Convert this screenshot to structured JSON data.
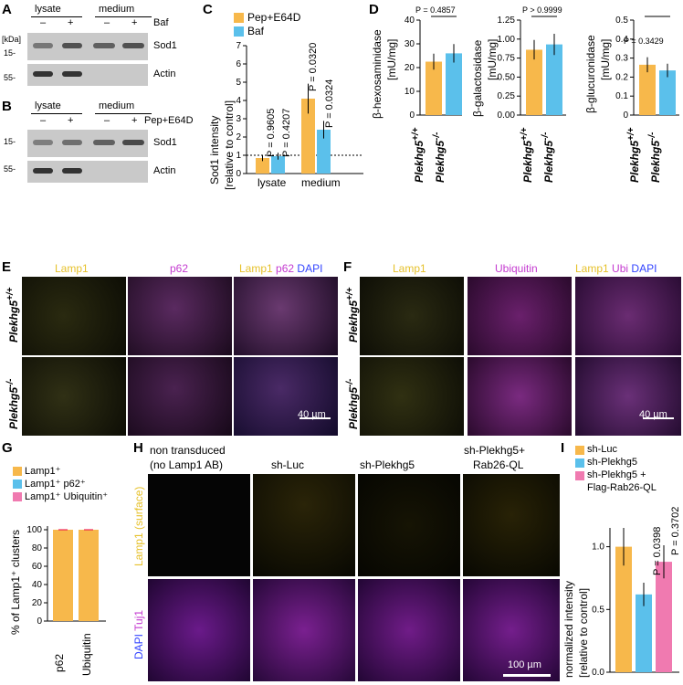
{
  "panels": {
    "A": "A",
    "B": "B",
    "C": "C",
    "D": "D",
    "E": "E",
    "F": "F",
    "G": "G",
    "H": "H",
    "I": "I"
  },
  "blotA": {
    "lysate": "lysate",
    "medium": "medium",
    "treatment": "Baf",
    "minus": "–",
    "plus": "+",
    "kda": "[kDa]",
    "m15": "15-",
    "m55": "55-",
    "sod1": "Sod1",
    "actin": "Actin"
  },
  "blotB": {
    "lysate": "lysate",
    "medium": "medium",
    "treatment": "Pep+E64D",
    "minus": "–",
    "plus": "+",
    "m15": "15-",
    "m55": "55-",
    "sod1": "Sod1",
    "actin": "Actin"
  },
  "panelC": {
    "ylabel1": "Sod1 intensity",
    "ylabel2": "[relative to control]",
    "legend": [
      "Pep+E64D",
      "Baf"
    ],
    "categories": [
      "lysate",
      "medium"
    ],
    "pvals": [
      "P = 0.9605",
      "P = 0.4207",
      "P = 0.0320",
      "P = 0.0324"
    ],
    "ticks": [
      "0",
      "1",
      "2",
      "3",
      "4",
      "5",
      "6",
      "7"
    ]
  },
  "panelD": {
    "h_ylabel1": "β-hexosaminidase",
    "h_ylabel2": "[mU/mg]",
    "h_p": "P = 0.4857",
    "h_ticks": [
      "0",
      "10",
      "20",
      "30",
      "40"
    ],
    "g_ylabel1": "β-galactosidase",
    "g_ylabel2": "[mU/mg]",
    "g_p": "P > 0.9999",
    "g_ticks": [
      "0.00",
      "0.25",
      "0.50",
      "0.75",
      "1.00",
      "1.25"
    ],
    "u_ylabel1": "β-glucuronidase",
    "u_ylabel2": "[mU/mg]",
    "u_p": "P = 0.3429",
    "u_ticks": [
      "0",
      "0.1",
      "0.2",
      "0.3",
      "0.4",
      "0.5"
    ],
    "wt": "Plekhg5",
    "wt_sup": "+/+",
    "ko": "Plekhg5",
    "ko_sup": "-/-"
  },
  "panelE": {
    "c1": "Lamp1",
    "c2": "p62",
    "c3a": "Lamp1",
    "c3b": "p62",
    "c3c": "DAPI",
    "row1": "Plekhg5",
    "row1sup": "+/+",
    "row2": "Plekhg5",
    "row2sup": "-/-",
    "scale": "40 µm"
  },
  "panelF": {
    "c1": "Lamp1",
    "c2": "Ubiquitin",
    "c3a": "Lamp1",
    "c3b": "Ubi",
    "c3c": "DAPI",
    "row1": "Plekhg5",
    "row1sup": "+/+",
    "row2": "Plekhg5",
    "row2sup": "-/-",
    "scale": "40 µm"
  },
  "panelG": {
    "legend": [
      "Lamp1⁺",
      "Lamp1⁺ p62⁺",
      "Lamp1⁺ Ubiquitin⁺"
    ],
    "ylabel": "% of Lamp1⁺ clusters",
    "ticks": [
      "0",
      "20",
      "40",
      "60",
      "80",
      "100"
    ],
    "categories": [
      "p62",
      "Ubiquitin"
    ]
  },
  "panelH": {
    "cols": [
      "non transduced",
      "(no Lamp1 AB)",
      "sh-Luc",
      "sh-Plekhg5",
      "sh-Plekhg5+",
      "Rab26-QL"
    ],
    "row1a": "Lamp1",
    "row1b": "(surface)",
    "row2a": "DAPI",
    "row2b": "Tuj1",
    "scale": "100 µm"
  },
  "panelI": {
    "legend": [
      "sh-Luc",
      "sh-Plekhg5",
      "sh-Plekhg5 +",
      "Flag-Rab26-QL"
    ],
    "ylabel1": "normalized intensity",
    "ylabel2": "[relative to control]",
    "ticks": [
      "0.0",
      "0.5",
      "1.0"
    ],
    "pvals": [
      "P = 0.0398",
      "P = 0.3702"
    ]
  },
  "colors": {
    "orange": "#f7b84b",
    "blue": "#5bc0eb",
    "pink": "#f07ab0"
  },
  "chart_data": [
    {
      "type": "bar",
      "panel": "C",
      "categories": [
        "lysate",
        "medium"
      ],
      "series": [
        {
          "name": "Pep+E64D",
          "values": [
            0.85,
            4.1
          ]
        },
        {
          "name": "Baf",
          "values": [
            0.95,
            2.4
          ]
        }
      ],
      "ylabel": "Sod1 intensity [relative to control]",
      "ylim": [
        0,
        7
      ]
    },
    {
      "type": "bar",
      "panel": "D-hexosaminidase",
      "categories": [
        "Plekhg5+/+",
        "Plekhg5-/-"
      ],
      "values": [
        22.5,
        26
      ],
      "ylabel": "β-hexosaminidase [mU/mg]",
      "ylim": [
        0,
        40
      ]
    },
    {
      "type": "bar",
      "panel": "D-galactosidase",
      "categories": [
        "Plekhg5+/+",
        "Plekhg5-/-"
      ],
      "values": [
        0.86,
        0.93
      ],
      "ylabel": "β-galactosidase [mU/mg]",
      "ylim": [
        0,
        1.25
      ]
    },
    {
      "type": "bar",
      "panel": "D-glucuronidase",
      "categories": [
        "Plekhg5+/+",
        "Plekhg5-/-"
      ],
      "values": [
        0.265,
        0.235
      ],
      "ylabel": "β-glucuronidase [mU/mg]",
      "ylim": [
        0,
        0.5
      ]
    },
    {
      "type": "bar",
      "panel": "G",
      "categories": [
        "p62",
        "Ubiquitin"
      ],
      "values": [
        100,
        100
      ],
      "ylabel": "% of Lamp1+ clusters",
      "ylim": [
        0,
        100
      ]
    },
    {
      "type": "bar",
      "panel": "I",
      "categories": [
        "sh-Luc",
        "sh-Plekhg5",
        "sh-Plekhg5 + Flag-Rab26-QL"
      ],
      "values": [
        1.0,
        0.62,
        0.88
      ],
      "ylabel": "normalized intensity [relative to control]",
      "ylim": [
        0,
        1.15
      ]
    }
  ]
}
